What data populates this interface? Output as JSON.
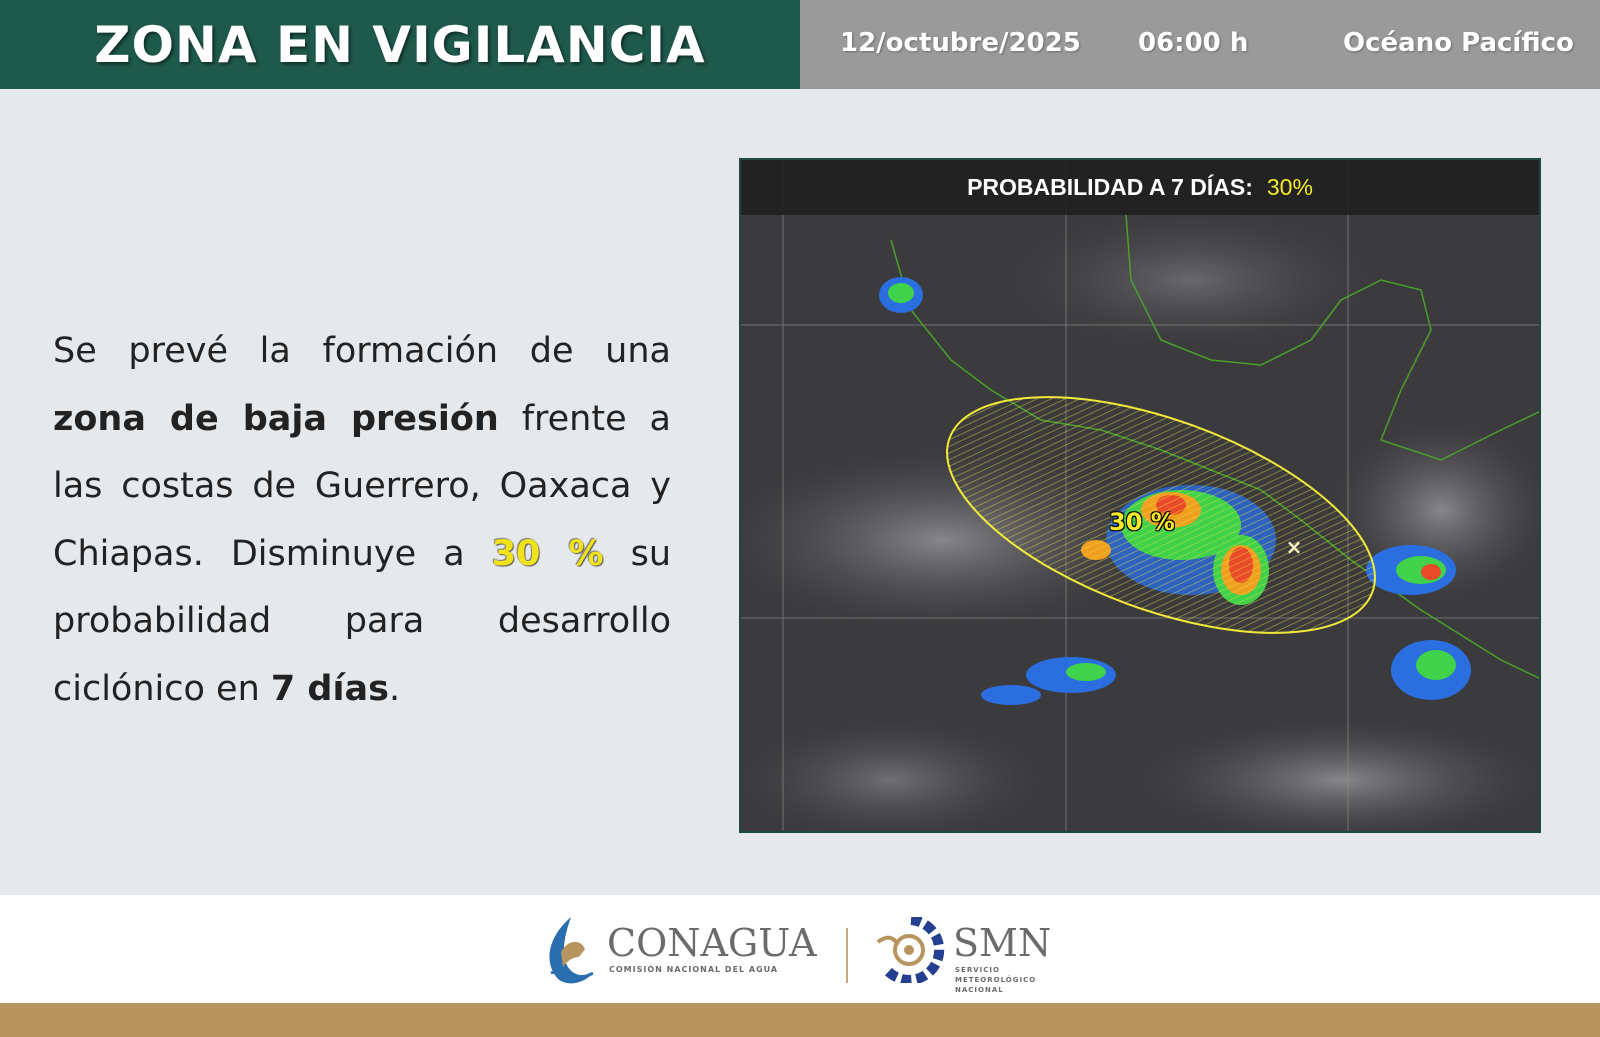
{
  "header": {
    "title": "ZONA EN VIGILANCIA",
    "date": "12/octubre/2025",
    "time": "06:00 h",
    "region": "Océano Pacífico"
  },
  "body": {
    "p1": "Se prevé la formación de una ",
    "b1": "zona de baja presión",
    "p2": " frente a las costas de Guerrero, Oaxaca y Chiapas. Disminuye a ",
    "hl": "30 %",
    "p3": " su probabilidad para desarrollo ciclónico en ",
    "b2": "7 días",
    "p4": "."
  },
  "map": {
    "banner_label": "PROBABILIDAD A 7 DÍAS:",
    "banner_value": "30%",
    "zone_label": "30 %",
    "zone_color": "#f4ea2a"
  },
  "footer": {
    "conagua": {
      "name": "CONAGUA",
      "subtitle": "COMISIÓN NACIONAL DEL AGUA"
    },
    "smn": {
      "name": "SMN",
      "subtitle_lines": [
        "SERVICIO",
        "METEOROLÓGICO",
        "NACIONAL"
      ]
    }
  }
}
